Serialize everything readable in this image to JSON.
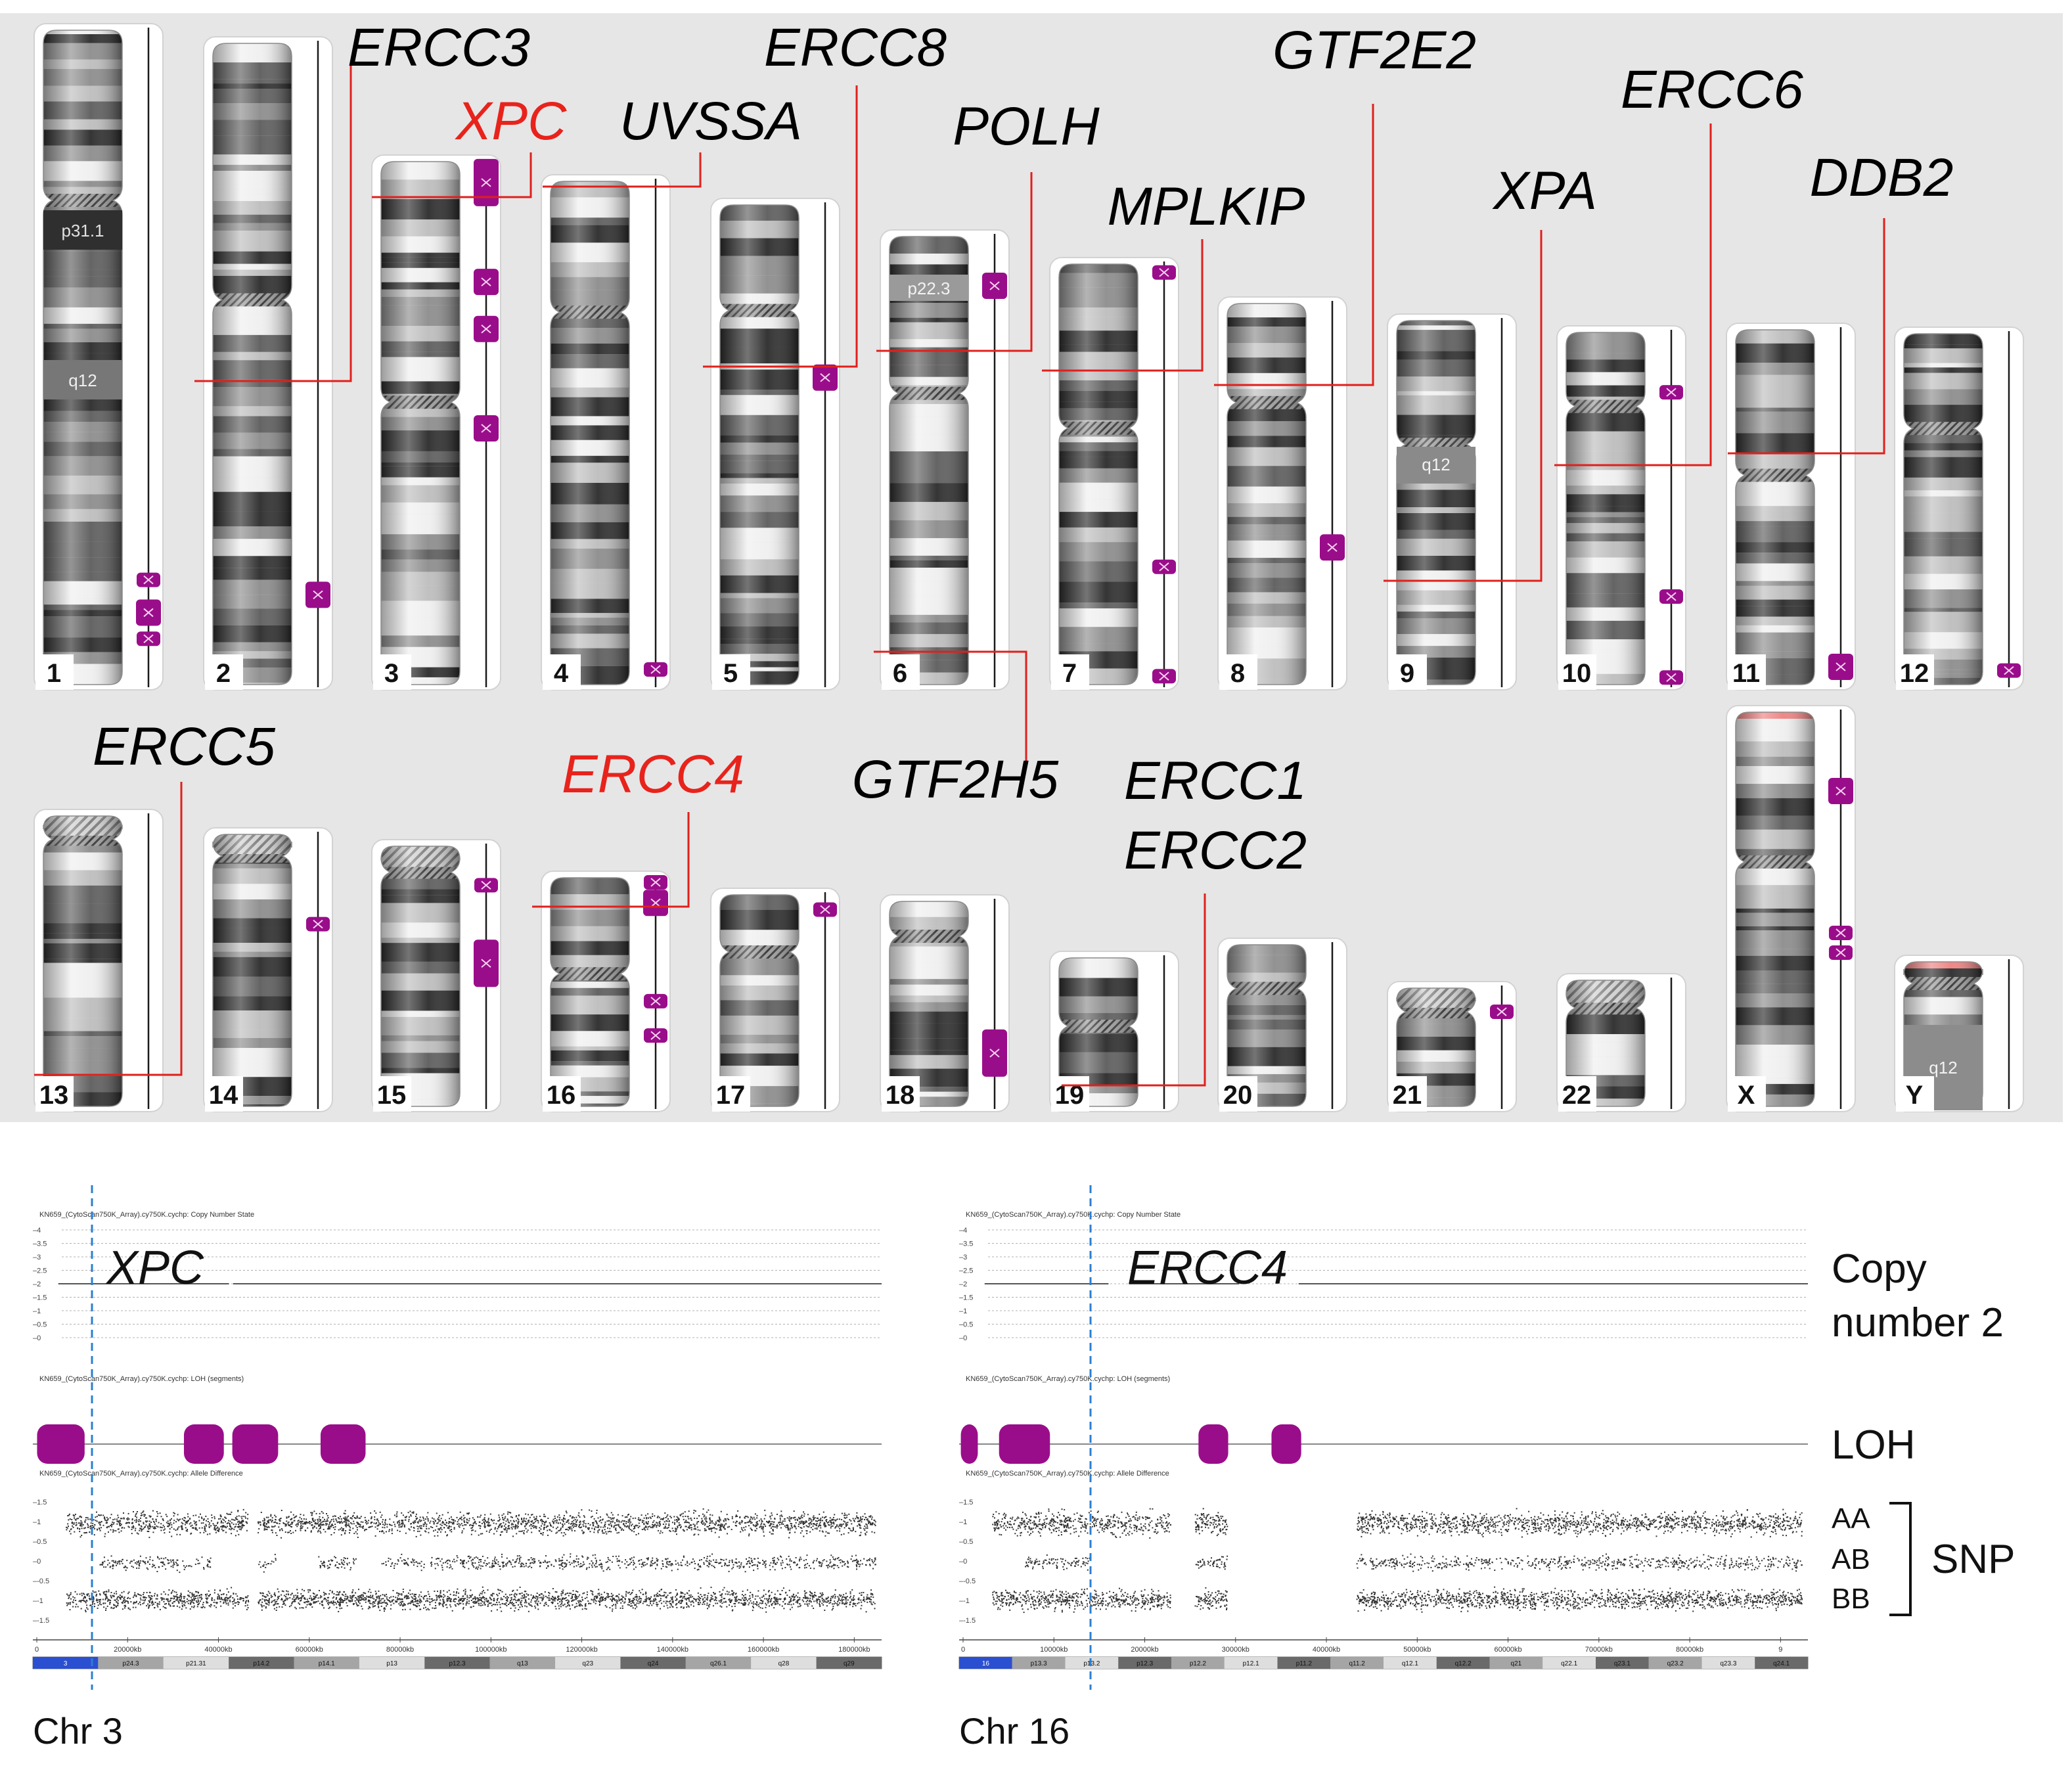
{
  "colors": {
    "panel_bg": "#e6e6e6",
    "loh": "#9a0d8a",
    "annotation_line": "#e0201c",
    "gene_red": "#e8231c",
    "gene_black": "#000000",
    "marker_line": "#2a7fd1"
  },
  "karyogram": {
    "chromosomes": [
      {
        "label": "1",
        "band_labels": [
          "p31.1",
          "q12"
        ]
      },
      {
        "label": "2",
        "band_labels": []
      },
      {
        "label": "3",
        "band_labels": []
      },
      {
        "label": "4",
        "band_labels": []
      },
      {
        "label": "5",
        "band_labels": []
      },
      {
        "label": "6",
        "band_labels": [
          "p22.3"
        ]
      },
      {
        "label": "7",
        "band_labels": []
      },
      {
        "label": "8",
        "band_labels": []
      },
      {
        "label": "9",
        "band_labels": [
          "q12"
        ]
      },
      {
        "label": "10",
        "band_labels": []
      },
      {
        "label": "11",
        "band_labels": []
      },
      {
        "label": "12",
        "band_labels": []
      },
      {
        "label": "13",
        "band_labels": []
      },
      {
        "label": "14",
        "band_labels": []
      },
      {
        "label": "15",
        "band_labels": []
      },
      {
        "label": "16",
        "band_labels": []
      },
      {
        "label": "17",
        "band_labels": []
      },
      {
        "label": "18",
        "band_labels": []
      },
      {
        "label": "19",
        "band_labels": []
      },
      {
        "label": "20",
        "band_labels": []
      },
      {
        "label": "21",
        "band_labels": []
      },
      {
        "label": "22",
        "band_labels": []
      },
      {
        "label": "X",
        "band_labels": []
      },
      {
        "label": "Y",
        "band_labels": [
          "q12"
        ]
      }
    ],
    "genes": [
      {
        "name": "ERCC3",
        "chromosome": "2",
        "highlight": false
      },
      {
        "name": "XPC",
        "chromosome": "3",
        "highlight": true
      },
      {
        "name": "UVSSA",
        "chromosome": "4",
        "highlight": false
      },
      {
        "name": "ERCC8",
        "chromosome": "5",
        "highlight": false
      },
      {
        "name": "POLH",
        "chromosome": "6",
        "highlight": false
      },
      {
        "name": "MPLKIP",
        "chromosome": "7",
        "highlight": false
      },
      {
        "name": "GTF2E2",
        "chromosome": "8",
        "highlight": false
      },
      {
        "name": "XPA",
        "chromosome": "9",
        "highlight": false
      },
      {
        "name": "ERCC6",
        "chromosome": "10",
        "highlight": false
      },
      {
        "name": "DDB2",
        "chromosome": "11",
        "highlight": false
      },
      {
        "name": "GTF2H5",
        "chromosome": "6",
        "highlight": false
      },
      {
        "name": "ERCC5",
        "chromosome": "13",
        "highlight": false
      },
      {
        "name": "ERCC4",
        "chromosome": "16",
        "highlight": true
      },
      {
        "name": "ERCC1",
        "chromosome": "19",
        "highlight": false
      },
      {
        "name": "ERCC2",
        "chromosome": "19",
        "highlight": false
      }
    ]
  },
  "tracks": {
    "left": {
      "gene_label": "XPC",
      "chromosome_caption": "Chr 3",
      "cn_header": "KN659_(CytoScan750K_Array).cy750K.cychp: Copy Number State",
      "loh_header": "KN659_(CytoScan750K_Array).cy750K.cychp: LOH (segments)",
      "ad_header": "KN659_(CytoScan750K_Array).cy750K.cychp: Allele Difference",
      "cn_ticks": [
        "4",
        "3.5",
        "3",
        "2.5",
        "2",
        "1.5",
        "1",
        "0.5",
        "0"
      ],
      "ad_ticks": [
        "1.5",
        "1",
        "0.5",
        "0",
        "-0.5",
        "-1",
        "-1.5"
      ],
      "x_ticks": [
        "0",
        "20000kb",
        "40000kb",
        "60000kb",
        "80000kb",
        "100000kb",
        "120000kb",
        "140000kb",
        "160000kb",
        "180000kb"
      ],
      "ideogram_bands": [
        "3",
        "p24.3",
        "p21.31",
        "p14.2",
        "p14.1",
        "p13",
        "p12.3",
        "q13",
        "q23",
        "q24",
        "q26.1",
        "q28",
        "q29"
      ]
    },
    "right": {
      "gene_label": "ERCC4",
      "chromosome_caption": "Chr 16",
      "cn_header": "KN659_(CytoScan750K_Array).cy750K.cychp: Copy Number State",
      "loh_header": "KN659_(CytoScan750K_Array).cy750K.cychp: LOH (segments)",
      "ad_header": "KN659_(CytoScan750K_Array).cy750K.cychp: Allele Difference",
      "cn_ticks": [
        "4",
        "3.5",
        "3",
        "2.5",
        "2",
        "1.5",
        "1",
        "0.5",
        "0"
      ],
      "ad_ticks": [
        "1.5",
        "1",
        "0.5",
        "0",
        "-0.5",
        "-1",
        "-1.5"
      ],
      "x_ticks": [
        "0",
        "10000kb",
        "20000kb",
        "30000kb",
        "40000kb",
        "50000kb",
        "60000kb",
        "70000kb",
        "80000kb",
        "9"
      ],
      "ideogram_bands": [
        "16",
        "p13.3",
        "p13.2",
        "p12.3",
        "p12.2",
        "p12.1",
        "p11.2",
        "q11.2",
        "q12.1",
        "q12.2",
        "q21",
        "q22.1",
        "q23.1",
        "q23.2",
        "q23.3",
        "q24.1"
      ]
    },
    "legend": {
      "copy_number": "Copy\nnumber 2",
      "copy_line1": "Copy",
      "copy_line2": "number 2",
      "loh": "LOH",
      "aa": "AA",
      "ab": "AB",
      "bb": "BB",
      "snp": "SNP"
    }
  }
}
